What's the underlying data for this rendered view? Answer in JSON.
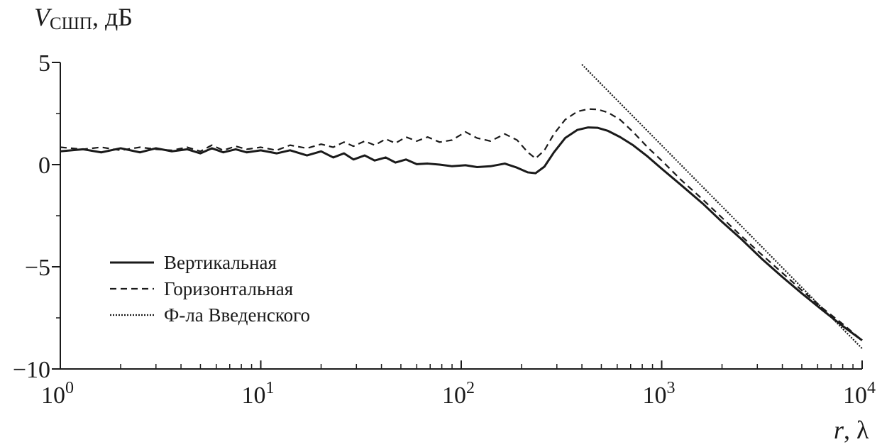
{
  "chart_data": {
    "type": "line",
    "title": "",
    "ylabel": {
      "main": "V",
      "sub": "СШП",
      "unit": ", дБ"
    },
    "xlabel": {
      "main": "r",
      "unit": ", λ"
    },
    "x_scale": "log",
    "xlim": [
      1,
      10000
    ],
    "ylim": [
      -10,
      5
    ],
    "x_ticks": [
      {
        "base": "10",
        "exp": "0",
        "value": 1
      },
      {
        "base": "10",
        "exp": "1",
        "value": 10
      },
      {
        "base": "10",
        "exp": "2",
        "value": 100
      },
      {
        "base": "10",
        "exp": "3",
        "value": 1000
      },
      {
        "base": "10",
        "exp": "4",
        "value": 10000
      }
    ],
    "y_ticks": [
      {
        "label": "5",
        "value": 5
      },
      {
        "label": "0",
        "value": 0
      },
      {
        "label": "−5",
        "value": -5
      },
      {
        "label": "−10",
        "value": -10
      }
    ],
    "grid": false,
    "legend_position": "left-middle",
    "series": [
      {
        "name": "Вертикальная",
        "style": "solid",
        "color": "#1a1a1a",
        "x": [
          1,
          1.3,
          1.6,
          2,
          2.5,
          3,
          3.6,
          4.3,
          5,
          5.7,
          6.5,
          7.5,
          8.5,
          10,
          12,
          14,
          17,
          20,
          23,
          26,
          29,
          33,
          37,
          42,
          47,
          53,
          60,
          68,
          78,
          90,
          105,
          120,
          140,
          165,
          190,
          215,
          235,
          260,
          290,
          330,
          380,
          430,
          480,
          540,
          620,
          720,
          850,
          1000,
          1250,
          1600,
          2000,
          2500,
          3150,
          4000,
          5000,
          6300,
          8000,
          10000
        ],
        "y": [
          0.65,
          0.75,
          0.6,
          0.8,
          0.6,
          0.8,
          0.65,
          0.75,
          0.55,
          0.8,
          0.6,
          0.75,
          0.6,
          0.7,
          0.55,
          0.7,
          0.45,
          0.65,
          0.35,
          0.55,
          0.25,
          0.45,
          0.2,
          0.35,
          0.1,
          0.25,
          0.02,
          0.05,
          0.0,
          -0.08,
          -0.03,
          -0.12,
          -0.08,
          0.05,
          -0.15,
          -0.38,
          -0.42,
          -0.1,
          0.6,
          1.3,
          1.7,
          1.82,
          1.8,
          1.65,
          1.35,
          0.95,
          0.4,
          -0.2,
          -1.0,
          -1.9,
          -2.8,
          -3.65,
          -4.6,
          -5.5,
          -6.3,
          -7.1,
          -7.9,
          -8.6
        ]
      },
      {
        "name": "Горизонтальная",
        "style": "dashed",
        "color": "#1a1a1a",
        "x": [
          1,
          1.3,
          1.6,
          2,
          2.5,
          3,
          3.6,
          4.3,
          5,
          5.7,
          6.5,
          7.5,
          8.5,
          10,
          12,
          14,
          17,
          20,
          23,
          26,
          29,
          33,
          37,
          42,
          47,
          53,
          60,
          68,
          78,
          90,
          105,
          120,
          140,
          165,
          190,
          215,
          235,
          260,
          290,
          330,
          380,
          430,
          480,
          540,
          620,
          720,
          850,
          1000,
          1250,
          1600,
          2000,
          2500,
          3150,
          4000,
          5000,
          6300,
          8000,
          10000
        ],
        "y": [
          0.85,
          0.75,
          0.85,
          0.7,
          0.85,
          0.75,
          0.7,
          0.85,
          0.65,
          0.95,
          0.7,
          0.9,
          0.75,
          0.85,
          0.7,
          0.95,
          0.8,
          1.0,
          0.85,
          1.1,
          0.9,
          1.15,
          0.95,
          1.25,
          1.05,
          1.35,
          1.15,
          1.35,
          1.1,
          1.2,
          1.6,
          1.3,
          1.15,
          1.5,
          1.2,
          0.6,
          0.3,
          0.7,
          1.5,
          2.2,
          2.6,
          2.72,
          2.7,
          2.55,
          2.2,
          1.6,
          0.85,
          0.2,
          -0.75,
          -1.7,
          -2.6,
          -3.5,
          -4.4,
          -5.3,
          -6.15,
          -7.0,
          -7.8,
          -8.6
        ]
      },
      {
        "name": "Ф-ла Введенского",
        "style": "dotted",
        "color": "#1a1a1a",
        "x": [
          400,
          10000
        ],
        "y": [
          4.9,
          -9.0
        ]
      }
    ]
  }
}
